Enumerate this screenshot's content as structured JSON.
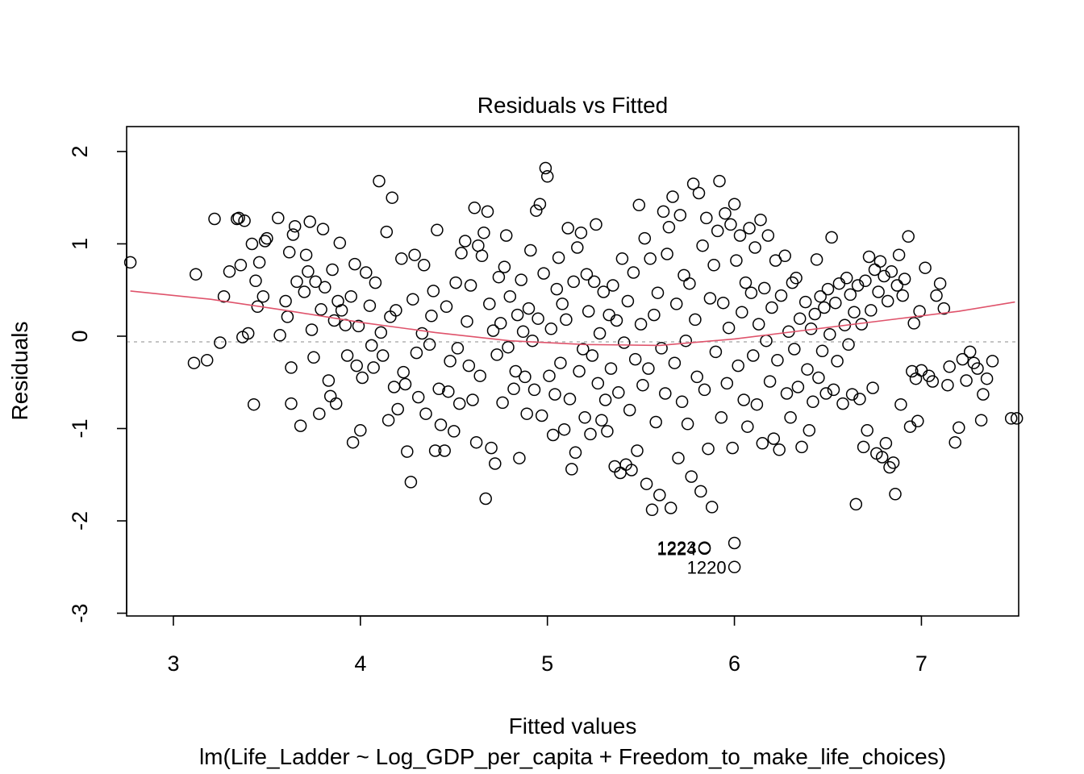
{
  "chart_data": {
    "type": "scatter",
    "title": "Residuals vs Fitted",
    "xlabel": "Fitted values",
    "subtitle": "lm(Life_Ladder ~ Log_GDP_per_capita + Freedom_to_make_life_choices)",
    "ylabel": "Residuals",
    "xlim": [
      2.75,
      7.52
    ],
    "ylim": [
      -3.03,
      2.27
    ],
    "x_ticks": [
      3,
      4,
      5,
      6,
      7
    ],
    "x_tick_labels": [
      "3",
      "4",
      "5",
      "6",
      "7"
    ],
    "y_ticks": [
      -3,
      -2,
      -1,
      0,
      1,
      2
    ],
    "y_tick_labels": [
      "-3",
      "-2",
      "-1",
      "0",
      "1",
      "2"
    ],
    "reference_line_y": 0,
    "grid": false,
    "legend": "none",
    "colors": {
      "points": "#000000",
      "smooth_line": "#df536b",
      "reference_line": "#b0b0b0"
    },
    "points": [
      [
        2.77,
        0.8
      ],
      [
        3.11,
        -0.29
      ],
      [
        3.12,
        0.67
      ],
      [
        3.18,
        -0.26
      ],
      [
        3.22,
        1.27
      ],
      [
        3.25,
        -0.07
      ],
      [
        3.27,
        0.43
      ],
      [
        3.3,
        0.7
      ],
      [
        3.34,
        1.27
      ],
      [
        3.35,
        1.28
      ],
      [
        3.36,
        0.77
      ],
      [
        3.37,
        -0.01
      ],
      [
        3.38,
        1.25
      ],
      [
        3.4,
        0.03
      ],
      [
        3.42,
        1.0
      ],
      [
        3.43,
        -0.74
      ],
      [
        3.44,
        0.6
      ],
      [
        3.45,
        0.32
      ],
      [
        3.46,
        0.8
      ],
      [
        3.48,
        0.43
      ],
      [
        3.49,
        1.03
      ],
      [
        3.5,
        1.06
      ],
      [
        3.56,
        1.28
      ],
      [
        3.57,
        0.01
      ],
      [
        3.6,
        0.38
      ],
      [
        3.61,
        0.21
      ],
      [
        3.62,
        0.91
      ],
      [
        3.63,
        -0.34
      ],
      [
        3.63,
        -0.73
      ],
      [
        3.64,
        1.1
      ],
      [
        3.65,
        1.19
      ],
      [
        3.66,
        0.59
      ],
      [
        3.68,
        -0.97
      ],
      [
        3.7,
        0.48
      ],
      [
        3.71,
        0.88
      ],
      [
        3.72,
        0.7
      ],
      [
        3.73,
        1.24
      ],
      [
        3.74,
        0.07
      ],
      [
        3.75,
        -0.23
      ],
      [
        3.76,
        0.59
      ],
      [
        3.78,
        -0.84
      ],
      [
        3.79,
        0.29
      ],
      [
        3.8,
        1.16
      ],
      [
        3.81,
        0.53
      ],
      [
        3.83,
        -0.48
      ],
      [
        3.84,
        -0.65
      ],
      [
        3.85,
        0.72
      ],
      [
        3.86,
        0.17
      ],
      [
        3.87,
        -0.73
      ],
      [
        3.88,
        0.38
      ],
      [
        3.89,
        1.01
      ],
      [
        3.9,
        0.28
      ],
      [
        3.92,
        0.12
      ],
      [
        3.93,
        -0.21
      ],
      [
        3.95,
        0.43
      ],
      [
        3.96,
        -1.15
      ],
      [
        3.97,
        0.78
      ],
      [
        3.98,
        -0.32
      ],
      [
        3.99,
        0.11
      ],
      [
        4.0,
        -1.02
      ],
      [
        4.01,
        -0.45
      ],
      [
        4.03,
        0.69
      ],
      [
        4.05,
        0.33
      ],
      [
        4.06,
        -0.1
      ],
      [
        4.07,
        -0.34
      ],
      [
        4.08,
        0.58
      ],
      [
        4.1,
        1.68
      ],
      [
        4.11,
        0.04
      ],
      [
        4.12,
        -0.21
      ],
      [
        4.14,
        1.13
      ],
      [
        4.15,
        -0.91
      ],
      [
        4.16,
        0.21
      ],
      [
        4.17,
        1.5
      ],
      [
        4.18,
        -0.55
      ],
      [
        4.19,
        0.28
      ],
      [
        4.2,
        -0.79
      ],
      [
        4.22,
        0.84
      ],
      [
        4.23,
        -0.39
      ],
      [
        4.24,
        -0.52
      ],
      [
        4.25,
        -1.25
      ],
      [
        4.27,
        -1.58
      ],
      [
        4.28,
        0.4
      ],
      [
        4.29,
        0.88
      ],
      [
        4.3,
        -0.18
      ],
      [
        4.31,
        -0.66
      ],
      [
        4.33,
        0.03
      ],
      [
        4.34,
        0.77
      ],
      [
        4.35,
        -0.84
      ],
      [
        4.37,
        -0.09
      ],
      [
        4.38,
        0.22
      ],
      [
        4.39,
        0.49
      ],
      [
        4.4,
        -1.24
      ],
      [
        4.41,
        1.15
      ],
      [
        4.42,
        -0.57
      ],
      [
        4.43,
        -0.96
      ],
      [
        4.45,
        -1.24
      ],
      [
        4.46,
        0.32
      ],
      [
        4.47,
        -0.6
      ],
      [
        4.48,
        -0.27
      ],
      [
        4.5,
        -1.03
      ],
      [
        4.51,
        0.58
      ],
      [
        4.52,
        -0.13
      ],
      [
        4.53,
        -0.73
      ],
      [
        4.54,
        0.9
      ],
      [
        4.56,
        1.03
      ],
      [
        4.57,
        0.16
      ],
      [
        4.58,
        -0.32
      ],
      [
        4.59,
        0.55
      ],
      [
        4.6,
        -0.69
      ],
      [
        4.61,
        1.39
      ],
      [
        4.62,
        -1.15
      ],
      [
        4.63,
        0.98
      ],
      [
        4.64,
        -0.43
      ],
      [
        4.65,
        0.87
      ],
      [
        4.66,
        1.12
      ],
      [
        4.67,
        -1.76
      ],
      [
        4.68,
        1.35
      ],
      [
        4.69,
        0.35
      ],
      [
        4.7,
        -1.21
      ],
      [
        4.71,
        0.06
      ],
      [
        4.72,
        -1.38
      ],
      [
        4.73,
        -0.2
      ],
      [
        4.74,
        0.64
      ],
      [
        4.75,
        0.14
      ],
      [
        4.76,
        -0.72
      ],
      [
        4.77,
        0.75
      ],
      [
        4.78,
        1.09
      ],
      [
        4.79,
        -0.12
      ],
      [
        4.8,
        0.43
      ],
      [
        4.82,
        -0.57
      ],
      [
        4.83,
        -0.38
      ],
      [
        4.84,
        0.23
      ],
      [
        4.85,
        -1.32
      ],
      [
        4.86,
        0.61
      ],
      [
        4.87,
        0.05
      ],
      [
        4.88,
        -0.44
      ],
      [
        4.89,
        -0.84
      ],
      [
        4.9,
        0.3
      ],
      [
        4.91,
        0.93
      ],
      [
        4.92,
        -0.05
      ],
      [
        4.93,
        -0.58
      ],
      [
        4.94,
        1.36
      ],
      [
        4.95,
        0.19
      ],
      [
        4.96,
        1.43
      ],
      [
        4.97,
        -0.86
      ],
      [
        4.98,
        0.68
      ],
      [
        4.99,
        1.82
      ],
      [
        5.0,
        1.73
      ],
      [
        5.01,
        -0.43
      ],
      [
        5.02,
        0.08
      ],
      [
        5.03,
        -1.07
      ],
      [
        5.04,
        -0.63
      ],
      [
        5.05,
        0.51
      ],
      [
        5.06,
        0.85
      ],
      [
        5.07,
        -0.29
      ],
      [
        5.08,
        0.35
      ],
      [
        5.09,
        -1.01
      ],
      [
        5.1,
        0.18
      ],
      [
        5.11,
        1.17
      ],
      [
        5.12,
        -0.68
      ],
      [
        5.13,
        -1.44
      ],
      [
        5.14,
        0.59
      ],
      [
        5.15,
        -1.26
      ],
      [
        5.16,
        0.96
      ],
      [
        5.17,
        -0.38
      ],
      [
        5.18,
        1.12
      ],
      [
        5.19,
        -0.14
      ],
      [
        5.2,
        -0.88
      ],
      [
        5.21,
        0.67
      ],
      [
        5.22,
        0.27
      ],
      [
        5.23,
        -1.06
      ],
      [
        5.24,
        -0.21
      ],
      [
        5.25,
        0.59
      ],
      [
        5.26,
        1.21
      ],
      [
        5.27,
        -0.51
      ],
      [
        5.28,
        0.03
      ],
      [
        5.29,
        -0.91
      ],
      [
        5.3,
        0.48
      ],
      [
        5.31,
        -0.69
      ],
      [
        5.32,
        -1.03
      ],
      [
        5.33,
        0.23
      ],
      [
        5.34,
        -0.35
      ],
      [
        5.35,
        0.55
      ],
      [
        5.36,
        -1.41
      ],
      [
        5.37,
        0.17
      ],
      [
        5.38,
        -0.61
      ],
      [
        5.39,
        -1.48
      ],
      [
        5.4,
        0.84
      ],
      [
        5.41,
        -0.07
      ],
      [
        5.42,
        -1.39
      ],
      [
        5.43,
        0.38
      ],
      [
        5.44,
        -0.8
      ],
      [
        5.45,
        -1.45
      ],
      [
        5.46,
        0.69
      ],
      [
        5.47,
        -0.25
      ],
      [
        5.48,
        -1.24
      ],
      [
        5.49,
        1.42
      ],
      [
        5.5,
        0.13
      ],
      [
        5.51,
        -0.53
      ],
      [
        5.52,
        1.06
      ],
      [
        5.53,
        -1.6
      ],
      [
        5.54,
        -0.35
      ],
      [
        5.55,
        0.84
      ],
      [
        5.56,
        -1.88
      ],
      [
        5.57,
        0.23
      ],
      [
        5.58,
        -0.93
      ],
      [
        5.59,
        0.47
      ],
      [
        5.6,
        -1.72
      ],
      [
        5.61,
        -0.13
      ],
      [
        5.62,
        1.35
      ],
      [
        5.63,
        -0.62
      ],
      [
        5.64,
        0.89
      ],
      [
        5.65,
        1.18
      ],
      [
        5.66,
        -1.86
      ],
      [
        5.67,
        1.51
      ],
      [
        5.68,
        -0.29
      ],
      [
        5.69,
        0.35
      ],
      [
        5.7,
        -1.32
      ],
      [
        5.71,
        1.31
      ],
      [
        5.72,
        -0.71
      ],
      [
        5.73,
        0.66
      ],
      [
        5.74,
        -0.05
      ],
      [
        5.75,
        -0.95
      ],
      [
        5.76,
        0.57
      ],
      [
        5.77,
        -1.52
      ],
      [
        5.78,
        1.65
      ],
      [
        5.79,
        0.18
      ],
      [
        5.8,
        -0.44
      ],
      [
        5.81,
        1.55
      ],
      [
        5.82,
        -1.68
      ],
      [
        5.83,
        0.98
      ],
      [
        5.84,
        -0.58
      ],
      [
        5.85,
        1.28
      ],
      [
        5.86,
        -1.22
      ],
      [
        5.87,
        0.41
      ],
      [
        5.88,
        -1.85
      ],
      [
        5.89,
        0.77
      ],
      [
        5.9,
        -0.17
      ],
      [
        5.91,
        1.14
      ],
      [
        5.92,
        1.68
      ],
      [
        5.93,
        -0.88
      ],
      [
        5.94,
        0.36
      ],
      [
        5.95,
        1.33
      ],
      [
        5.96,
        -0.51
      ],
      [
        5.97,
        0.09
      ],
      [
        5.98,
        1.21
      ],
      [
        5.99,
        -1.21
      ],
      [
        6.0,
        1.43
      ],
      [
        6.01,
        0.82
      ],
      [
        6.02,
        -0.32
      ],
      [
        6.03,
        1.09
      ],
      [
        6.04,
        0.26
      ],
      [
        6.05,
        -0.69
      ],
      [
        6.06,
        0.58
      ],
      [
        6.07,
        -0.98
      ],
      [
        6.08,
        1.17
      ],
      [
        6.09,
        0.47
      ],
      [
        6.1,
        -0.21
      ],
      [
        6.11,
        0.96
      ],
      [
        6.12,
        -0.74
      ],
      [
        6.13,
        0.13
      ],
      [
        6.14,
        1.26
      ],
      [
        6.15,
        -1.16
      ],
      [
        6.16,
        0.52
      ],
      [
        6.17,
        -0.05
      ],
      [
        6.18,
        1.09
      ],
      [
        6.19,
        -0.49
      ],
      [
        6.2,
        0.31
      ],
      [
        6.21,
        -1.11
      ],
      [
        6.22,
        0.82
      ],
      [
        6.23,
        -0.26
      ],
      [
        6.24,
        -1.23
      ],
      [
        6.25,
        0.44
      ],
      [
        6.27,
        0.87
      ],
      [
        6.28,
        -0.62
      ],
      [
        6.29,
        0.05
      ],
      [
        6.3,
        -0.88
      ],
      [
        6.31,
        0.58
      ],
      [
        6.32,
        -0.14
      ],
      [
        6.33,
        0.63
      ],
      [
        6.34,
        -0.55
      ],
      [
        6.35,
        0.19
      ],
      [
        6.36,
        -1.2
      ],
      [
        6.38,
        0.37
      ],
      [
        6.39,
        -0.36
      ],
      [
        6.4,
        -1.02
      ],
      [
        6.41,
        0.08
      ],
      [
        6.42,
        -0.71
      ],
      [
        6.43,
        0.24
      ],
      [
        6.44,
        0.83
      ],
      [
        6.45,
        -0.45
      ],
      [
        6.46,
        0.43
      ],
      [
        6.47,
        -0.16
      ],
      [
        6.48,
        0.31
      ],
      [
        6.49,
        -0.62
      ],
      [
        6.5,
        0.51
      ],
      [
        6.51,
        0.02
      ],
      [
        6.52,
        1.07
      ],
      [
        6.53,
        -0.58
      ],
      [
        6.54,
        0.36
      ],
      [
        6.55,
        -0.27
      ],
      [
        6.56,
        0.57
      ],
      [
        6.58,
        -0.73
      ],
      [
        6.59,
        0.12
      ],
      [
        6.6,
        0.63
      ],
      [
        6.61,
        -0.09
      ],
      [
        6.62,
        0.45
      ],
      [
        6.63,
        -0.63
      ],
      [
        6.64,
        0.26
      ],
      [
        6.65,
        -1.82
      ],
      [
        6.66,
        0.55
      ],
      [
        6.67,
        -0.68
      ],
      [
        6.68,
        0.13
      ],
      [
        6.69,
        -1.2
      ],
      [
        6.7,
        0.6
      ],
      [
        6.71,
        -1.02
      ],
      [
        6.72,
        0.86
      ],
      [
        6.73,
        0.28
      ],
      [
        6.74,
        -0.56
      ],
      [
        6.75,
        0.72
      ],
      [
        6.76,
        -1.27
      ],
      [
        6.77,
        0.48
      ],
      [
        6.78,
        0.81
      ],
      [
        6.79,
        -1.31
      ],
      [
        6.8,
        0.65
      ],
      [
        6.81,
        -1.16
      ],
      [
        6.82,
        0.38
      ],
      [
        6.83,
        -1.42
      ],
      [
        6.84,
        0.7
      ],
      [
        6.85,
        -1.37
      ],
      [
        6.86,
        -1.71
      ],
      [
        6.87,
        0.55
      ],
      [
        6.88,
        0.88
      ],
      [
        6.89,
        -0.74
      ],
      [
        6.9,
        0.44
      ],
      [
        6.91,
        0.62
      ],
      [
        6.93,
        1.08
      ],
      [
        6.94,
        -0.98
      ],
      [
        6.95,
        -0.38
      ],
      [
        6.96,
        0.14
      ],
      [
        6.97,
        -0.46
      ],
      [
        6.98,
        -0.92
      ],
      [
        6.99,
        0.27
      ],
      [
        7.0,
        -0.37
      ],
      [
        7.02,
        0.74
      ],
      [
        7.04,
        -0.43
      ],
      [
        7.06,
        -0.49
      ],
      [
        7.08,
        0.44
      ],
      [
        7.1,
        0.57
      ],
      [
        7.12,
        0.3
      ],
      [
        7.14,
        -0.53
      ],
      [
        7.15,
        -0.33
      ],
      [
        7.18,
        -1.15
      ],
      [
        7.2,
        -0.99
      ],
      [
        7.22,
        -0.25
      ],
      [
        7.24,
        -0.48
      ],
      [
        7.26,
        -0.17
      ],
      [
        7.28,
        -0.29
      ],
      [
        7.3,
        -0.35
      ],
      [
        7.32,
        -0.91
      ],
      [
        7.33,
        -0.63
      ],
      [
        7.35,
        -0.46
      ],
      [
        7.38,
        -0.27
      ],
      [
        7.48,
        -0.89
      ],
      [
        7.51,
        -0.89
      ],
      [
        5.84,
        -2.29
      ],
      [
        5.84,
        -2.3
      ],
      [
        6.0,
        -2.24
      ],
      [
        6.0,
        -2.5
      ]
    ],
    "smooth_curve": [
      [
        2.77,
        0.49
      ],
      [
        3.2,
        0.4
      ],
      [
        3.6,
        0.28
      ],
      [
        4.0,
        0.15
      ],
      [
        4.4,
        0.04
      ],
      [
        4.8,
        -0.05
      ],
      [
        5.2,
        -0.09
      ],
      [
        5.6,
        -0.1
      ],
      [
        6.0,
        -0.03
      ],
      [
        6.4,
        0.07
      ],
      [
        6.8,
        0.17
      ],
      [
        7.2,
        0.27
      ],
      [
        7.5,
        0.37
      ]
    ],
    "labeled_points": [
      {
        "label": "1223",
        "x": 5.84,
        "y": -2.29
      },
      {
        "label": "1224",
        "x": 5.84,
        "y": -2.3
      },
      {
        "label": "1220",
        "x": 6.0,
        "y": -2.5
      }
    ]
  }
}
